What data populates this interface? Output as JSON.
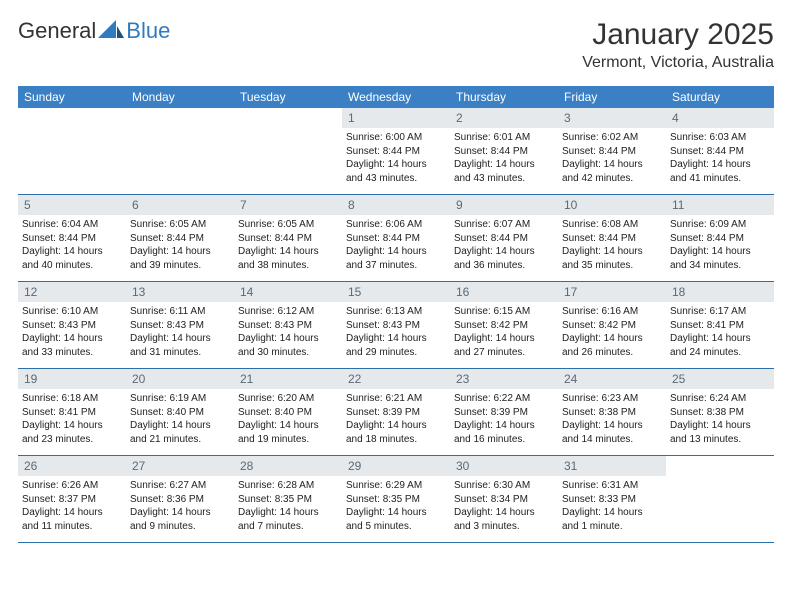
{
  "header": {
    "logo_general": "General",
    "logo_blue": "Blue",
    "month_title": "January 2025",
    "location": "Vermont, Victoria, Australia"
  },
  "colors": {
    "header_bg": "#3b7fc4",
    "daynum_bg": "#e6e9ec",
    "week_divider": "#2f6fa8",
    "logo_blue": "#2f7bbf"
  },
  "day_labels": [
    "Sunday",
    "Monday",
    "Tuesday",
    "Wednesday",
    "Thursday",
    "Friday",
    "Saturday"
  ],
  "weeks": [
    [
      null,
      null,
      null,
      {
        "n": "1",
        "sr": "Sunrise: 6:00 AM",
        "ss": "Sunset: 8:44 PM",
        "dl": "Daylight: 14 hours and 43 minutes."
      },
      {
        "n": "2",
        "sr": "Sunrise: 6:01 AM",
        "ss": "Sunset: 8:44 PM",
        "dl": "Daylight: 14 hours and 43 minutes."
      },
      {
        "n": "3",
        "sr": "Sunrise: 6:02 AM",
        "ss": "Sunset: 8:44 PM",
        "dl": "Daylight: 14 hours and 42 minutes."
      },
      {
        "n": "4",
        "sr": "Sunrise: 6:03 AM",
        "ss": "Sunset: 8:44 PM",
        "dl": "Daylight: 14 hours and 41 minutes."
      }
    ],
    [
      {
        "n": "5",
        "sr": "Sunrise: 6:04 AM",
        "ss": "Sunset: 8:44 PM",
        "dl": "Daylight: 14 hours and 40 minutes."
      },
      {
        "n": "6",
        "sr": "Sunrise: 6:05 AM",
        "ss": "Sunset: 8:44 PM",
        "dl": "Daylight: 14 hours and 39 minutes."
      },
      {
        "n": "7",
        "sr": "Sunrise: 6:05 AM",
        "ss": "Sunset: 8:44 PM",
        "dl": "Daylight: 14 hours and 38 minutes."
      },
      {
        "n": "8",
        "sr": "Sunrise: 6:06 AM",
        "ss": "Sunset: 8:44 PM",
        "dl": "Daylight: 14 hours and 37 minutes."
      },
      {
        "n": "9",
        "sr": "Sunrise: 6:07 AM",
        "ss": "Sunset: 8:44 PM",
        "dl": "Daylight: 14 hours and 36 minutes."
      },
      {
        "n": "10",
        "sr": "Sunrise: 6:08 AM",
        "ss": "Sunset: 8:44 PM",
        "dl": "Daylight: 14 hours and 35 minutes."
      },
      {
        "n": "11",
        "sr": "Sunrise: 6:09 AM",
        "ss": "Sunset: 8:44 PM",
        "dl": "Daylight: 14 hours and 34 minutes."
      }
    ],
    [
      {
        "n": "12",
        "sr": "Sunrise: 6:10 AM",
        "ss": "Sunset: 8:43 PM",
        "dl": "Daylight: 14 hours and 33 minutes."
      },
      {
        "n": "13",
        "sr": "Sunrise: 6:11 AM",
        "ss": "Sunset: 8:43 PM",
        "dl": "Daylight: 14 hours and 31 minutes."
      },
      {
        "n": "14",
        "sr": "Sunrise: 6:12 AM",
        "ss": "Sunset: 8:43 PM",
        "dl": "Daylight: 14 hours and 30 minutes."
      },
      {
        "n": "15",
        "sr": "Sunrise: 6:13 AM",
        "ss": "Sunset: 8:43 PM",
        "dl": "Daylight: 14 hours and 29 minutes."
      },
      {
        "n": "16",
        "sr": "Sunrise: 6:15 AM",
        "ss": "Sunset: 8:42 PM",
        "dl": "Daylight: 14 hours and 27 minutes."
      },
      {
        "n": "17",
        "sr": "Sunrise: 6:16 AM",
        "ss": "Sunset: 8:42 PM",
        "dl": "Daylight: 14 hours and 26 minutes."
      },
      {
        "n": "18",
        "sr": "Sunrise: 6:17 AM",
        "ss": "Sunset: 8:41 PM",
        "dl": "Daylight: 14 hours and 24 minutes."
      }
    ],
    [
      {
        "n": "19",
        "sr": "Sunrise: 6:18 AM",
        "ss": "Sunset: 8:41 PM",
        "dl": "Daylight: 14 hours and 23 minutes."
      },
      {
        "n": "20",
        "sr": "Sunrise: 6:19 AM",
        "ss": "Sunset: 8:40 PM",
        "dl": "Daylight: 14 hours and 21 minutes."
      },
      {
        "n": "21",
        "sr": "Sunrise: 6:20 AM",
        "ss": "Sunset: 8:40 PM",
        "dl": "Daylight: 14 hours and 19 minutes."
      },
      {
        "n": "22",
        "sr": "Sunrise: 6:21 AM",
        "ss": "Sunset: 8:39 PM",
        "dl": "Daylight: 14 hours and 18 minutes."
      },
      {
        "n": "23",
        "sr": "Sunrise: 6:22 AM",
        "ss": "Sunset: 8:39 PM",
        "dl": "Daylight: 14 hours and 16 minutes."
      },
      {
        "n": "24",
        "sr": "Sunrise: 6:23 AM",
        "ss": "Sunset: 8:38 PM",
        "dl": "Daylight: 14 hours and 14 minutes."
      },
      {
        "n": "25",
        "sr": "Sunrise: 6:24 AM",
        "ss": "Sunset: 8:38 PM",
        "dl": "Daylight: 14 hours and 13 minutes."
      }
    ],
    [
      {
        "n": "26",
        "sr": "Sunrise: 6:26 AM",
        "ss": "Sunset: 8:37 PM",
        "dl": "Daylight: 14 hours and 11 minutes."
      },
      {
        "n": "27",
        "sr": "Sunrise: 6:27 AM",
        "ss": "Sunset: 8:36 PM",
        "dl": "Daylight: 14 hours and 9 minutes."
      },
      {
        "n": "28",
        "sr": "Sunrise: 6:28 AM",
        "ss": "Sunset: 8:35 PM",
        "dl": "Daylight: 14 hours and 7 minutes."
      },
      {
        "n": "29",
        "sr": "Sunrise: 6:29 AM",
        "ss": "Sunset: 8:35 PM",
        "dl": "Daylight: 14 hours and 5 minutes."
      },
      {
        "n": "30",
        "sr": "Sunrise: 6:30 AM",
        "ss": "Sunset: 8:34 PM",
        "dl": "Daylight: 14 hours and 3 minutes."
      },
      {
        "n": "31",
        "sr": "Sunrise: 6:31 AM",
        "ss": "Sunset: 8:33 PM",
        "dl": "Daylight: 14 hours and 1 minute."
      },
      null
    ]
  ]
}
